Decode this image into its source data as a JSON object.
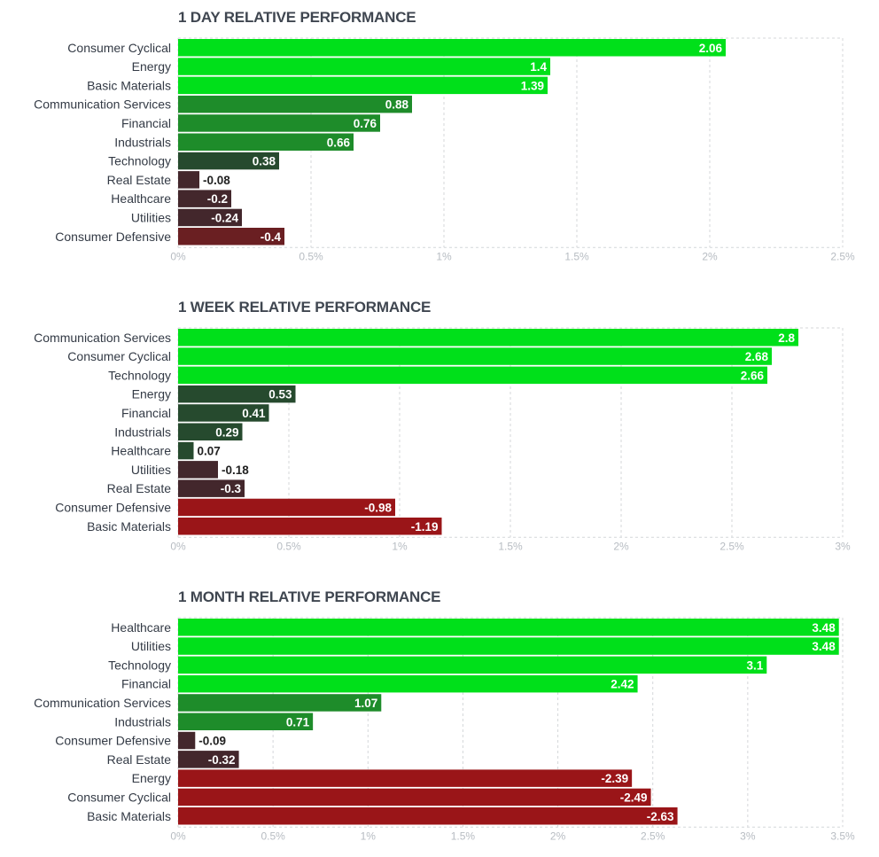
{
  "colors": {
    "grid": "#d4d7da",
    "pos_strong": "#00e01a",
    "pos_mid": "#1e8c2a",
    "pos_weak": "#264a2e",
    "neg_weak": "#43272c",
    "neg_mid": "#6a1f22",
    "neg_strong": "#9a1518"
  },
  "chart_data": [
    {
      "type": "bar",
      "orientation": "horizontal",
      "title": "1 DAY RELATIVE PERFORMANCE",
      "categories": [
        "Consumer Cyclical",
        "Energy",
        "Basic Materials",
        "Communication Services",
        "Financial",
        "Industrials",
        "Technology",
        "Real Estate",
        "Healthcare",
        "Utilities",
        "Consumer Defensive"
      ],
      "values": [
        2.06,
        1.4,
        1.39,
        0.88,
        0.76,
        0.66,
        0.38,
        -0.08,
        -0.2,
        -0.24,
        -0.4
      ],
      "value_labels": [
        "2.06",
        "1.4",
        "1.39",
        "0.88",
        "0.76",
        "0.66",
        "0.38",
        "-0.08",
        "-0.2",
        "-0.24",
        "-0.4"
      ],
      "xlim": [
        0,
        2.5
      ],
      "ticks": [
        0,
        0.5,
        1,
        1.5,
        2,
        2.5
      ],
      "tick_labels": [
        "0%",
        "0.5%",
        "1%",
        "1.5%",
        "2%",
        "2.5%"
      ],
      "bar_length": "absolute value",
      "grid": true
    },
    {
      "type": "bar",
      "orientation": "horizontal",
      "title": "1 WEEK RELATIVE PERFORMANCE",
      "categories": [
        "Communication Services",
        "Consumer Cyclical",
        "Technology",
        "Energy",
        "Financial",
        "Industrials",
        "Healthcare",
        "Utilities",
        "Real Estate",
        "Consumer Defensive",
        "Basic Materials"
      ],
      "values": [
        2.8,
        2.68,
        2.66,
        0.53,
        0.41,
        0.29,
        0.07,
        -0.18,
        -0.3,
        -0.98,
        -1.19
      ],
      "value_labels": [
        "2.8",
        "2.68",
        "2.66",
        "0.53",
        "0.41",
        "0.29",
        "0.07",
        "-0.18",
        "-0.3",
        "-0.98",
        "-1.19"
      ],
      "xlim": [
        0,
        3
      ],
      "ticks": [
        0,
        0.5,
        1,
        1.5,
        2,
        2.5,
        3
      ],
      "tick_labels": [
        "0%",
        "0.5%",
        "1%",
        "1.5%",
        "2%",
        "2.5%",
        "3%"
      ],
      "bar_length": "absolute value",
      "grid": true
    },
    {
      "type": "bar",
      "orientation": "horizontal",
      "title": "1 MONTH RELATIVE PERFORMANCE",
      "categories": [
        "Healthcare",
        "Utilities",
        "Technology",
        "Financial",
        "Communication Services",
        "Industrials",
        "Consumer Defensive",
        "Real Estate",
        "Energy",
        "Consumer Cyclical",
        "Basic Materials"
      ],
      "values": [
        3.48,
        3.48,
        3.1,
        2.42,
        1.07,
        0.71,
        -0.09,
        -0.32,
        -2.39,
        -2.49,
        -2.63
      ],
      "value_labels": [
        "3.48",
        "3.48",
        "3.1",
        "2.42",
        "1.07",
        "0.71",
        "-0.09",
        "-0.32",
        "-2.39",
        "-2.49",
        "-2.63"
      ],
      "xlim": [
        0,
        3.5
      ],
      "ticks": [
        0,
        0.5,
        1,
        1.5,
        2,
        2.5,
        3,
        3.5
      ],
      "tick_labels": [
        "0%",
        "0.5%",
        "1%",
        "1.5%",
        "2%",
        "2.5%",
        "3%",
        "3.5%"
      ],
      "bar_length": "absolute value",
      "grid": true
    }
  ]
}
